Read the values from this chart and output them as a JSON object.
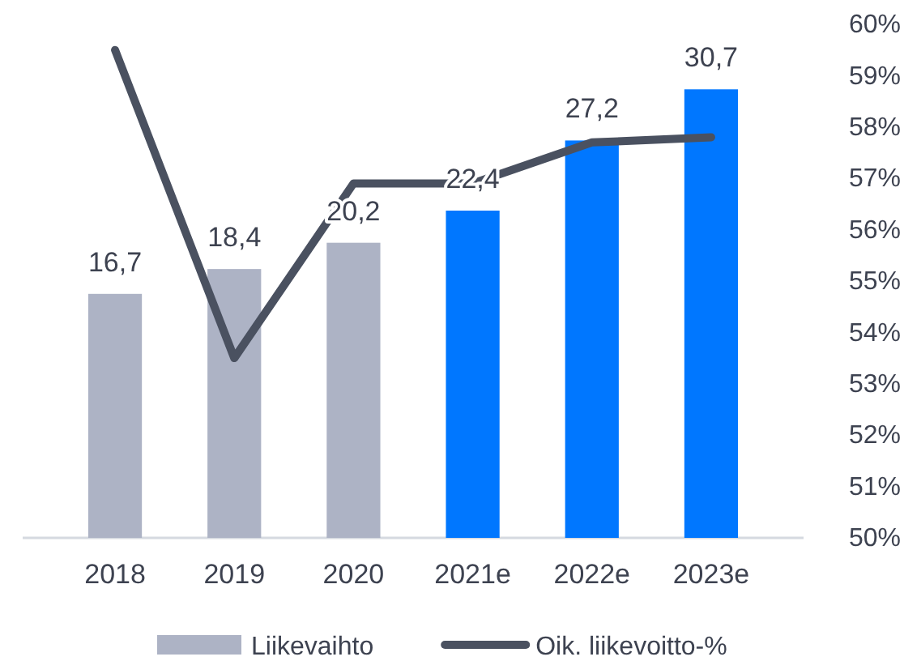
{
  "chart_data": {
    "type": "bar",
    "categories": [
      "2018",
      "2019",
      "2020",
      "2021e",
      "2022e",
      "2023e"
    ],
    "series": [
      {
        "name": "Liikevaihto",
        "color": "#adb3c5",
        "colors": [
          "#adb3c5",
          "#adb3c5",
          "#adb3c5",
          "#0077ff",
          "#0077ff",
          "#0077ff"
        ],
        "values": [
          16.7,
          18.4,
          20.2,
          22.4,
          27.2,
          30.7
        ],
        "value_labels": [
          "16,7",
          "18,4",
          "20,2",
          "22,4",
          "27,2",
          "30,7"
        ]
      },
      {
        "name": "Oik. liikevoitto-%",
        "type": "line",
        "axis": "y2",
        "color": "#4a5160",
        "values": [
          59.5,
          53.5,
          56.9,
          56.9,
          57.7,
          57.8
        ]
      }
    ],
    "y2lim": [
      50,
      60
    ],
    "y2ticks": [
      {
        "value": 50,
        "label": "50%"
      },
      {
        "value": 51,
        "label": "51%"
      },
      {
        "value": 52,
        "label": "52%"
      },
      {
        "value": 53,
        "label": "53%"
      },
      {
        "value": 54,
        "label": "54%"
      },
      {
        "value": 55,
        "label": "55%"
      },
      {
        "value": 56,
        "label": "56%"
      },
      {
        "value": 57,
        "label": "57%"
      },
      {
        "value": 58,
        "label": "58%"
      },
      {
        "value": 59,
        "label": "59%"
      },
      {
        "value": 60,
        "label": "60%"
      }
    ],
    "legend": "bottom"
  }
}
